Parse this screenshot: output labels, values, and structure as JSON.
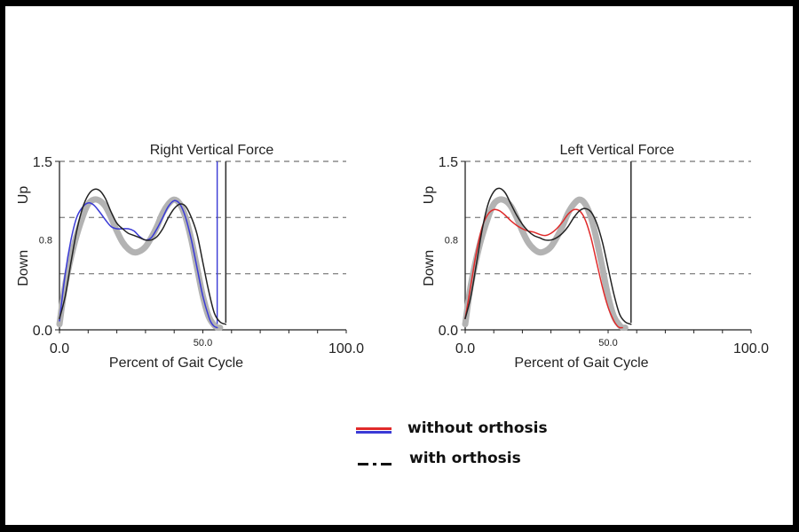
{
  "chart_data": [
    {
      "type": "line",
      "title": "Right Vertical Force",
      "xlabel": "Percent of Gait Cycle",
      "ylabel_up": "Up",
      "ylabel_down": "Down",
      "xlim": [
        0,
        100
      ],
      "ylim": [
        0,
        1.5
      ],
      "x_tick_labels": [
        "0.0",
        "50.0",
        "100.0"
      ],
      "y_tick_labels": [
        "0.0",
        "0.8",
        "1.5"
      ],
      "gridlines_y": [
        0.5,
        1.0,
        1.5
      ],
      "toe_off_marker_x": 55,
      "stride_end_marker_x": 58,
      "series": [
        {
          "name": "normative band",
          "color": "#b3b3b3",
          "x": [
            0,
            2,
            5,
            8,
            10,
            12,
            14,
            16,
            18,
            20,
            22,
            24,
            26,
            28,
            30,
            32,
            34,
            36,
            38,
            40,
            42,
            44,
            46,
            48,
            50,
            52,
            54,
            55,
            56
          ],
          "y": [
            0.05,
            0.4,
            0.75,
            1.0,
            1.12,
            1.16,
            1.15,
            1.1,
            1.0,
            0.88,
            0.78,
            0.72,
            0.69,
            0.7,
            0.74,
            0.82,
            0.92,
            1.04,
            1.12,
            1.16,
            1.12,
            1.0,
            0.8,
            0.55,
            0.3,
            0.12,
            0.04,
            0.02,
            0.02
          ]
        },
        {
          "name": "without orthosis",
          "color": "#3a3ad6",
          "x": [
            0,
            2,
            4,
            6,
            8,
            10,
            12,
            14,
            16,
            18,
            20,
            22,
            24,
            26,
            28,
            30,
            32,
            34,
            36,
            38,
            40,
            42,
            44,
            46,
            48,
            50,
            52,
            53,
            54,
            55
          ],
          "y": [
            0.08,
            0.5,
            0.8,
            1.0,
            1.09,
            1.13,
            1.11,
            1.05,
            0.98,
            0.92,
            0.9,
            0.9,
            0.9,
            0.88,
            0.83,
            0.8,
            0.82,
            0.9,
            1.0,
            1.1,
            1.15,
            1.12,
            1.0,
            0.8,
            0.55,
            0.3,
            0.12,
            0.06,
            0.03,
            0.02
          ]
        },
        {
          "name": "with orthosis",
          "color": "#222222",
          "x": [
            0,
            2,
            4,
            6,
            8,
            10,
            12,
            14,
            16,
            18,
            20,
            22,
            24,
            26,
            28,
            30,
            32,
            34,
            36,
            38,
            40,
            42,
            44,
            46,
            48,
            50,
            52,
            54,
            56,
            58
          ],
          "y": [
            0.1,
            0.3,
            0.6,
            0.88,
            1.08,
            1.2,
            1.25,
            1.24,
            1.17,
            1.05,
            0.95,
            0.9,
            0.86,
            0.84,
            0.82,
            0.8,
            0.8,
            0.83,
            0.9,
            1.0,
            1.08,
            1.12,
            1.1,
            1.0,
            0.85,
            0.6,
            0.35,
            0.15,
            0.07,
            0.05
          ]
        }
      ]
    },
    {
      "type": "line",
      "title": "Left Vertical Force",
      "xlabel": "Percent of Gait Cycle",
      "ylabel_up": "Up",
      "ylabel_down": "Down",
      "xlim": [
        0,
        100
      ],
      "ylim": [
        0,
        1.5
      ],
      "x_tick_labels": [
        "0.0",
        "50.0",
        "100.0"
      ],
      "y_tick_labels": [
        "0.0",
        "0.8",
        "1.5"
      ],
      "gridlines_y": [
        0.5,
        1.0,
        1.5
      ],
      "stride_end_marker_x": 58,
      "series": [
        {
          "name": "normative band",
          "color": "#b3b3b3",
          "x": [
            0,
            2,
            5,
            8,
            10,
            12,
            14,
            16,
            18,
            20,
            22,
            24,
            26,
            28,
            30,
            32,
            34,
            36,
            38,
            40,
            42,
            44,
            46,
            48,
            50,
            52,
            54,
            55,
            56
          ],
          "y": [
            0.05,
            0.4,
            0.75,
            1.0,
            1.12,
            1.16,
            1.15,
            1.1,
            1.0,
            0.88,
            0.78,
            0.72,
            0.69,
            0.7,
            0.74,
            0.82,
            0.92,
            1.04,
            1.12,
            1.16,
            1.12,
            1.0,
            0.8,
            0.55,
            0.3,
            0.12,
            0.04,
            0.02,
            0.02
          ]
        },
        {
          "name": "without orthosis",
          "color": "#e02a2a",
          "x": [
            0,
            2,
            4,
            6,
            8,
            10,
            12,
            14,
            16,
            18,
            20,
            22,
            24,
            26,
            28,
            30,
            32,
            34,
            36,
            38,
            40,
            42,
            44,
            46,
            48,
            50,
            52,
            53,
            54,
            55
          ],
          "y": [
            0.1,
            0.4,
            0.7,
            0.92,
            1.03,
            1.07,
            1.06,
            1.02,
            0.97,
            0.93,
            0.9,
            0.88,
            0.87,
            0.85,
            0.84,
            0.86,
            0.9,
            0.96,
            1.03,
            1.07,
            1.06,
            0.98,
            0.82,
            0.6,
            0.38,
            0.2,
            0.08,
            0.04,
            0.02,
            0.02
          ]
        },
        {
          "name": "with orthosis",
          "color": "#222222",
          "x": [
            0,
            2,
            4,
            6,
            8,
            10,
            12,
            14,
            16,
            18,
            20,
            22,
            24,
            26,
            28,
            30,
            32,
            34,
            36,
            38,
            40,
            42,
            44,
            46,
            48,
            50,
            52,
            54,
            56,
            58
          ],
          "y": [
            0.1,
            0.3,
            0.6,
            0.9,
            1.12,
            1.23,
            1.26,
            1.22,
            1.12,
            1.02,
            0.94,
            0.88,
            0.84,
            0.82,
            0.8,
            0.8,
            0.82,
            0.86,
            0.92,
            1.0,
            1.06,
            1.08,
            1.05,
            0.95,
            0.78,
            0.55,
            0.32,
            0.14,
            0.07,
            0.05
          ]
        }
      ]
    }
  ],
  "legend": {
    "without_orthosis": "without orthosis",
    "with_orthosis": "with orthosis",
    "red_color": "#e02a2a",
    "blue_color": "#3a3ad6",
    "black_color": "#111111"
  }
}
